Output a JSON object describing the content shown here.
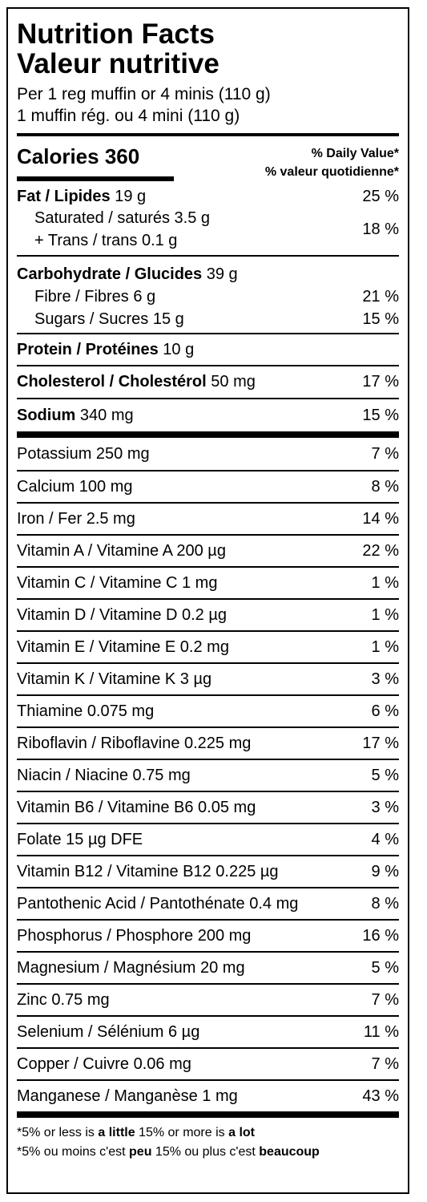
{
  "title_en": "Nutrition Facts",
  "title_fr": "Valeur nutritive",
  "serving_en": "Per 1 reg muffin or 4 minis (110 g)",
  "serving_fr": "1 muffin rég. ou 4 mini (110 g)",
  "calories_label": "Calories 360",
  "dv_en": "% Daily Value*",
  "dv_fr": "% valeur quotidienne*",
  "fat": {
    "label": "Fat / Lipides",
    "amount": "19 g",
    "pct": "25 %"
  },
  "saturated": "Saturated / saturés 3.5 g",
  "trans": "+ Trans / trans 0.1 g",
  "sat_trans_pct": "18 %",
  "carb": {
    "label": "Carbohydrate / Glucides",
    "amount": "39 g"
  },
  "fibre": {
    "label": "Fibre / Fibres 6 g",
    "pct": "21 %"
  },
  "sugars": {
    "label": "Sugars / Sucres 15 g",
    "pct": "15 %"
  },
  "protein": {
    "label": "Protein / Protéines",
    "amount": "10 g"
  },
  "cholesterol": {
    "label": "Cholesterol / Cholestérol",
    "amount": "50 mg",
    "pct": "17 %"
  },
  "sodium": {
    "label": "Sodium",
    "amount": "340 mg",
    "pct": "15 %"
  },
  "micros": [
    {
      "label": "Potassium 250 mg",
      "pct": "7 %"
    },
    {
      "label": "Calcium 100 mg",
      "pct": "8 %"
    },
    {
      "label": "Iron / Fer 2.5 mg",
      "pct": "14 %"
    },
    {
      "label": "Vitamin A / Vitamine A 200 µg",
      "pct": "22 %"
    },
    {
      "label": "Vitamin C / Vitamine C 1 mg",
      "pct": "1 %"
    },
    {
      "label": "Vitamin D / Vitamine D 0.2 µg",
      "pct": "1 %"
    },
    {
      "label": "Vitamin E / Vitamine E 0.2 mg",
      "pct": "1 %"
    },
    {
      "label": "Vitamin K / Vitamine K 3 µg",
      "pct": "3 %"
    },
    {
      "label": "Thiamine 0.075 mg",
      "pct": "6 %"
    },
    {
      "label": "Riboflavin / Riboflavine 0.225 mg",
      "pct": "17 %"
    },
    {
      "label": "Niacin / Niacine 0.75 mg",
      "pct": "5 %"
    },
    {
      "label": "Vitamin B6 / Vitamine B6 0.05 mg",
      "pct": "3 %"
    },
    {
      "label": "Folate 15 µg DFE",
      "pct": "4 %"
    },
    {
      "label": "Vitamin B12 / Vitamine B12 0.225 µg",
      "pct": "9 %"
    },
    {
      "label": "Pantothenic Acid / Pantothénate 0.4 mg",
      "pct": "8 %"
    },
    {
      "label": "Phosphorus / Phosphore 200 mg",
      "pct": "16 %"
    },
    {
      "label": "Magnesium / Magnésium 20 mg",
      "pct": "5 %"
    },
    {
      "label": "Zinc 0.75 mg",
      "pct": "7 %"
    },
    {
      "label": "Selenium / Sélénium 6 µg",
      "pct": "11 %"
    },
    {
      "label": "Copper / Cuivre 0.06 mg",
      "pct": "7 %"
    },
    {
      "label": "Manganese / Manganèse 1 mg",
      "pct": "43 %"
    }
  ],
  "footer_en": {
    "a": "*5% or less is ",
    "b": "a little",
    "c": " 15% or more is ",
    "d": "a lot"
  },
  "footer_fr": {
    "a": "*5% ou moins c'est ",
    "b": "peu",
    "c": " 15% ou plus c'est ",
    "d": "beaucoup"
  }
}
